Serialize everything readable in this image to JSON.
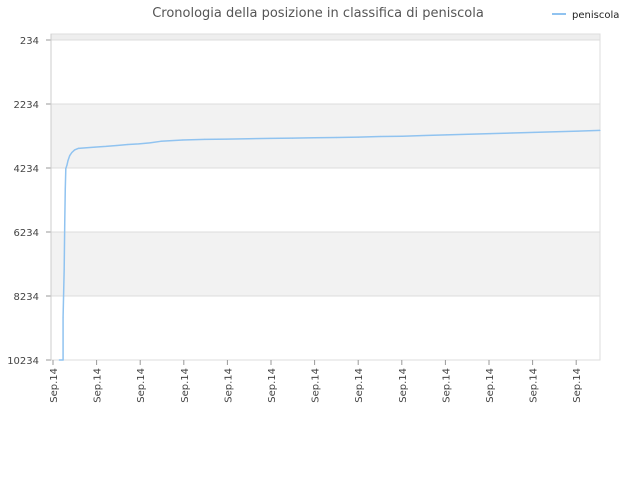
{
  "chart_data": {
    "type": "line",
    "title": "Cronologia della posizione in classifica di peniscola",
    "xlabel": "",
    "ylabel": "",
    "y_reversed": true,
    "ylim": [
      10234,
      234
    ],
    "y_ticks": [
      "234",
      "2234",
      "4234",
      "6234",
      "8234",
      "10234"
    ],
    "x_tick_labels": [
      "Sep.14",
      "Sep.14",
      "Sep.14",
      "Sep.14",
      "Sep.14",
      "Sep.14",
      "Sep.14",
      "Sep.14",
      "Sep.14",
      "Sep.14",
      "Sep.14",
      "Sep.14",
      "Sep.14"
    ],
    "x_range": [
      0,
      100
    ],
    "legend_position": "top-right",
    "grid": true,
    "series": [
      {
        "name": "peniscola",
        "color": "#90c3f0",
        "x": [
          1.5,
          2.2,
          2.2,
          2.4,
          2.5,
          2.6,
          2.7,
          2.9,
          3.1,
          3.4,
          3.8,
          4.3,
          5,
          6.5,
          8,
          10,
          12,
          14,
          16,
          18,
          20,
          24,
          28,
          32,
          36,
          40,
          44,
          48,
          52,
          56,
          60,
          64,
          68,
          72,
          76,
          80,
          84,
          88,
          92,
          96,
          100
        ],
        "y": [
          10234,
          10234,
          8900,
          7400,
          6000,
          4900,
          4250,
          4150,
          4000,
          3850,
          3750,
          3670,
          3620,
          3600,
          3580,
          3560,
          3530,
          3500,
          3480,
          3450,
          3400,
          3360,
          3340,
          3330,
          3320,
          3310,
          3300,
          3290,
          3280,
          3270,
          3250,
          3240,
          3220,
          3200,
          3180,
          3160,
          3140,
          3120,
          3100,
          3080,
          3060
        ]
      }
    ]
  }
}
